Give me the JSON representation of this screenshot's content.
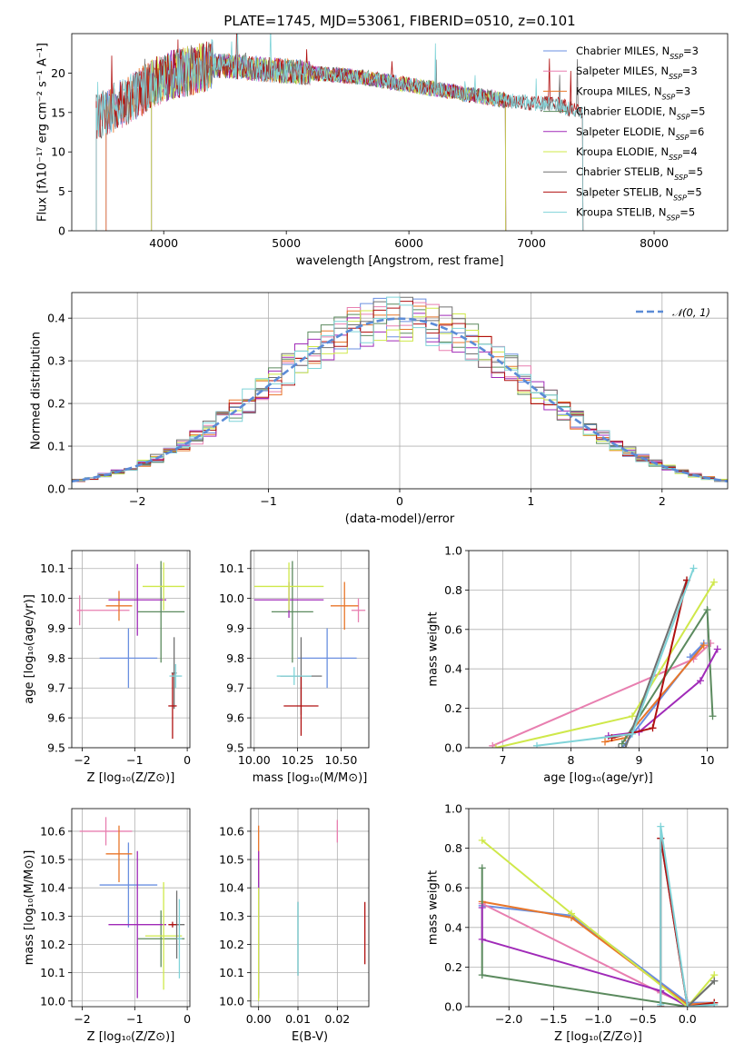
{
  "chart_data": [
    {
      "id": "spectrum",
      "type": "line",
      "title": "PLATE=1745, MJD=53061, FIBERID=0510, z=0.101",
      "xlabel": "wavelength [Angstrom, rest frame]",
      "ylabel": "Flux [fλ10⁻¹⁷ erg cm⁻² s⁻¹ A⁻¹]",
      "xlim": [
        3250,
        8600
      ],
      "ylim": [
        0,
        25
      ],
      "xticks": [
        4000,
        5000,
        6000,
        7000,
        8000
      ],
      "yticks": [
        0,
        5,
        10,
        15,
        20
      ],
      "grid": false,
      "legend_position": "top-right",
      "series": [
        {
          "name": "Chabrier MILES, N_SSP=3",
          "color": "#6a8fe0",
          "x": [
            3530,
            3700,
            3900,
            4100,
            4400,
            4700,
            5000,
            5400,
            5800,
            6200,
            6600,
            6790
          ]
        },
        {
          "name": "Salpeter MILES, N_SSP=3",
          "color": "#e87fb0",
          "x": [
            3530,
            3700,
            3900,
            4100,
            4400,
            4700,
            5000,
            5400,
            5800,
            6200,
            6600,
            6790
          ]
        },
        {
          "name": "Kroupa MILES, N_SSP=3",
          "color": "#e8762a",
          "x": [
            3530,
            3700,
            3900,
            4100,
            4400,
            4700,
            5000,
            5400,
            5800,
            6200,
            6600,
            6790
          ]
        },
        {
          "name": "Chabrier ELODIE, N_SSP=5",
          "color": "#5b8a5e",
          "x": [
            3900,
            4100,
            4400,
            4700,
            5000,
            5400,
            5800,
            6200,
            6600,
            6790
          ]
        },
        {
          "name": "Salpeter ELODIE, N_SSP=6",
          "color": "#a02ab8",
          "x": [
            3900,
            4100,
            4400,
            4700,
            5000,
            5400,
            5800,
            6200,
            6600,
            6790
          ]
        },
        {
          "name": "Kroupa ELODIE, N_SSP=4",
          "color": "#cfe84a",
          "x": [
            3900,
            4100,
            4400,
            4700,
            5000,
            5400,
            5800,
            6200,
            6600,
            6790
          ]
        },
        {
          "name": "Chabrier STELIB, N_SSP=5",
          "color": "#707070",
          "x": [
            3450,
            3700,
            4000,
            4400,
            4800,
            5200,
            5600,
            6000,
            6400,
            6800,
            7200,
            7420
          ]
        },
        {
          "name": "Salpeter STELIB, N_SSP=5",
          "color": "#b01010",
          "x": [
            3450,
            3700,
            4000,
            4400,
            4800,
            5200,
            5600,
            6000,
            6400,
            6800,
            7200,
            7420
          ]
        },
        {
          "name": "Kroupa STELIB, N_SSP=5",
          "color": "#7fd3d8",
          "x": [
            3450,
            3700,
            4000,
            4400,
            4800,
            5200,
            5600,
            6000,
            6400,
            6800,
            7200,
            7420
          ]
        }
      ],
      "continuum_y": [
        14.5,
        16.5,
        19.5,
        21.0,
        20.5,
        20.0,
        19.5,
        18.5,
        17.5,
        16.5,
        16.0,
        15.0
      ]
    },
    {
      "id": "residuals",
      "type": "histogram",
      "xlabel": "(data-model)/error",
      "ylabel": "Normed distribution",
      "xlim": [
        -2.5,
        2.5
      ],
      "ylim": [
        0,
        0.46
      ],
      "xticks": [
        -2,
        -1,
        0,
        1,
        2
      ],
      "yticks": [
        0.0,
        0.1,
        0.2,
        0.3,
        0.4
      ],
      "grid": true,
      "legend_position": "top-right",
      "reference_curve": {
        "name": "𝒩(0, 1)",
        "color": "#5b8bd6",
        "style": "dashed",
        "mean": 0,
        "sigma": 1
      },
      "bin_width": 0.1,
      "series": [
        {
          "color": "#6a8fe0",
          "wiggle": 0.0
        },
        {
          "color": "#e87fb0",
          "wiggle": 0.5
        },
        {
          "color": "#e8762a",
          "wiggle": 1.0
        },
        {
          "color": "#5b8a5e",
          "wiggle": 1.5
        },
        {
          "color": "#a02ab8",
          "wiggle": 2.0
        },
        {
          "color": "#cfe84a",
          "wiggle": 2.5
        },
        {
          "color": "#707070",
          "wiggle": 3.0
        },
        {
          "color": "#b01010",
          "wiggle": 3.5
        },
        {
          "color": "#7fd3d8",
          "wiggle": 4.0
        }
      ]
    },
    {
      "id": "age_vs_z",
      "type": "errorbar",
      "xlabel": "Z [log₁₀(Z/Z⊙)]",
      "ylabel": "age  [log₁₀(age/yr)]",
      "xlim": [
        -2.2,
        0.05
      ],
      "ylim": [
        9.5,
        10.16
      ],
      "xticks": [
        -2,
        -1,
        0
      ],
      "yticks": [
        9.5,
        9.6,
        9.7,
        9.8,
        9.9,
        10.0,
        10.1
      ],
      "grid": true,
      "points": [
        {
          "color": "#6a8fe0",
          "x": -1.12,
          "xerr": 0.55,
          "y": 9.8,
          "yerr": 0.1
        },
        {
          "color": "#e87fb0",
          "x": -2.05,
          "xerr": 0.05,
          "y": 9.96,
          "yerr": 0.05
        },
        {
          "color": "#e87fb0",
          "x": -1.6,
          "xerr": 0.5,
          "y": 9.96,
          "yerr": 0.0
        },
        {
          "color": "#e8762a",
          "x": -1.3,
          "xerr": 0.25,
          "y": 9.975,
          "yerr": 0.05
        },
        {
          "color": "#5b8a5e",
          "x": -0.5,
          "xerr": 0.45,
          "y": 9.955,
          "yerr": 0.17
        },
        {
          "color": "#a02ab8",
          "x": -0.95,
          "xerr": 0.55,
          "y": 9.995,
          "yerr": 0.12
        },
        {
          "color": "#cfe84a",
          "x": -0.45,
          "xerr": 0.4,
          "y": 10.04,
          "yerr": 0.08
        },
        {
          "color": "#707070",
          "x": -0.25,
          "xerr": 0.05,
          "y": 9.75,
          "yerr": 0.12
        },
        {
          "color": "#b01010",
          "x": -0.28,
          "xerr": 0.08,
          "y": 9.64,
          "yerr": 0.11
        },
        {
          "color": "#7fd3d8",
          "x": -0.22,
          "xerr": 0.12,
          "y": 9.74,
          "yerr": 0.04
        }
      ]
    },
    {
      "id": "age_vs_mass",
      "type": "errorbar",
      "xlabel": "mass [log₁₀(M/M⊙)]",
      "ylabel": "",
      "xlim": [
        9.98,
        10.66
      ],
      "ylim": [
        9.5,
        10.16
      ],
      "xticks": [
        10.0,
        10.25,
        10.5
      ],
      "xticklabels": [
        "10.00",
        "10.25",
        "10.50"
      ],
      "yticks": [
        9.5,
        9.6,
        9.7,
        9.8,
        9.9,
        10.0,
        10.1
      ],
      "grid": true,
      "points": [
        {
          "color": "#6a8fe0",
          "x": 10.42,
          "xerr": 0.17,
          "y": 9.8,
          "yerr": 0.1
        },
        {
          "color": "#e87fb0",
          "x": 10.6,
          "xerr": 0.04,
          "y": 9.96,
          "yerr": 0.04
        },
        {
          "color": "#e8762a",
          "x": 10.52,
          "xerr": 0.08,
          "y": 9.975,
          "yerr": 0.08
        },
        {
          "color": "#5b8a5e",
          "x": 10.22,
          "xerr": 0.12,
          "y": 9.955,
          "yerr": 0.17
        },
        {
          "color": "#a02ab8",
          "x": 10.2,
          "xerr": 0.2,
          "y": 9.995,
          "yerr": 0.06
        },
        {
          "color": "#cfe84a",
          "x": 10.2,
          "xerr": 0.2,
          "y": 10.04,
          "yerr": 0.08
        },
        {
          "color": "#707070",
          "x": 10.27,
          "xerr": 0.12,
          "y": 9.74,
          "yerr": 0.13
        },
        {
          "color": "#b01010",
          "x": 10.27,
          "xerr": 0.1,
          "y": 9.64,
          "yerr": 0.1
        },
        {
          "color": "#7fd3d8",
          "x": 10.23,
          "xerr": 0.1,
          "y": 9.74,
          "yerr": 0.03
        }
      ]
    },
    {
      "id": "weight_vs_age",
      "type": "line",
      "xlabel": "age  [log₁₀(age/yr)]",
      "ylabel": "mass weight",
      "xlim": [
        6.5,
        10.3
      ],
      "ylim": [
        0,
        1
      ],
      "xticks": [
        7,
        8,
        9,
        10
      ],
      "yticks": [
        0.0,
        0.2,
        0.4,
        0.6,
        0.8,
        1.0
      ],
      "grid": true,
      "series": [
        {
          "color": "#6a8fe0",
          "x": [
            8.75,
            9.95,
            9.75
          ],
          "y": [
            0.0,
            0.53,
            0.46
          ]
        },
        {
          "color": "#e87fb0",
          "x": [
            6.85,
            9.8,
            10.05
          ],
          "y": [
            0.01,
            0.45,
            0.53
          ]
        },
        {
          "color": "#e8762a",
          "x": [
            8.5,
            8.8,
            9.95
          ],
          "y": [
            0.03,
            0.05,
            0.52
          ]
        },
        {
          "color": "#5b8a5e",
          "x": [
            8.75,
            10.0,
            10.08
          ],
          "y": [
            0.02,
            0.7,
            0.16
          ]
        },
        {
          "color": "#a02ab8",
          "x": [
            8.55,
            9.0,
            9.9,
            10.15
          ],
          "y": [
            0.06,
            0.08,
            0.34,
            0.5
          ]
        },
        {
          "color": "#cfe84a",
          "x": [
            6.9,
            8.9,
            10.1
          ],
          "y": [
            0.0,
            0.16,
            0.84
          ]
        },
        {
          "color": "#707070",
          "x": [
            8.7,
            8.8,
            9.7
          ],
          "y": [
            0.0,
            0.0,
            0.85
          ]
        },
        {
          "color": "#b01010",
          "x": [
            8.6,
            9.2,
            9.7
          ],
          "y": [
            0.05,
            0.1,
            0.85
          ]
        },
        {
          "color": "#7fd3d8",
          "x": [
            7.5,
            8.9,
            9.8
          ],
          "y": [
            0.01,
            0.07,
            0.91
          ]
        }
      ]
    },
    {
      "id": "mass_vs_z",
      "type": "errorbar",
      "xlabel": "Z [log₁₀(Z/Z⊙)]",
      "ylabel": "mass [log₁₀(M/M⊙)]",
      "xlim": [
        -2.2,
        0.05
      ],
      "ylim": [
        9.98,
        10.68
      ],
      "xticks": [
        -2,
        -1,
        0
      ],
      "yticks": [
        10.0,
        10.1,
        10.2,
        10.3,
        10.4,
        10.5,
        10.6
      ],
      "grid": true,
      "points": [
        {
          "color": "#6a8fe0",
          "x": -1.12,
          "xerr": 0.55,
          "y": 10.41,
          "yerr": 0.15
        },
        {
          "color": "#e87fb0",
          "x": -1.55,
          "xerr": 0.5,
          "y": 10.6,
          "yerr": 0.05
        },
        {
          "color": "#e8762a",
          "x": -1.3,
          "xerr": 0.25,
          "y": 10.52,
          "yerr": 0.1
        },
        {
          "color": "#5b8a5e",
          "x": -0.5,
          "xerr": 0.45,
          "y": 10.22,
          "yerr": 0.1
        },
        {
          "color": "#a02ab8",
          "x": -0.95,
          "xerr": 0.55,
          "y": 10.27,
          "yerr": 0.26
        },
        {
          "color": "#cfe84a",
          "x": -0.45,
          "xerr": 0.35,
          "y": 10.23,
          "yerr": 0.19
        },
        {
          "color": "#707070",
          "x": -0.2,
          "xerr": 0.15,
          "y": 10.27,
          "yerr": 0.12
        },
        {
          "color": "#b01010",
          "x": -0.28,
          "xerr": 0.08,
          "y": 10.27,
          "yerr": 0.01
        },
        {
          "color": "#7fd3d8",
          "x": -0.15,
          "xerr": 0.05,
          "y": 10.22,
          "yerr": 0.14
        }
      ]
    },
    {
      "id": "mass_vs_ebv",
      "type": "errorbar",
      "xlabel": "E(B-V)",
      "ylabel": "",
      "xlim": [
        -0.002,
        0.028
      ],
      "ylim": [
        9.98,
        10.68
      ],
      "xticks": [
        0.0,
        0.01,
        0.02
      ],
      "xticklabels": [
        "0.00",
        "0.01",
        "0.02"
      ],
      "yticks": [
        10.0,
        10.1,
        10.2,
        10.3,
        10.4,
        10.5,
        10.6
      ],
      "grid": true,
      "points": [
        {
          "color": "#6a8fe0",
          "x": 0.0,
          "xerr": 0,
          "y": 10.41,
          "yerr": 0.05
        },
        {
          "color": "#e87fb0",
          "x": 0.02,
          "xerr": 0,
          "y": 10.6,
          "yerr": 0.04
        },
        {
          "color": "#e8762a",
          "x": 0.0,
          "xerr": 0,
          "y": 10.52,
          "yerr": 0.1
        },
        {
          "color": "#5b8a5e",
          "x": 0.0,
          "xerr": 0,
          "y": 10.22,
          "yerr": 0.2
        },
        {
          "color": "#a02ab8",
          "x": 0.0,
          "xerr": 0,
          "y": 10.27,
          "yerr": 0.26
        },
        {
          "color": "#cfe84a",
          "x": 0.0,
          "xerr": 0,
          "y": 10.2,
          "yerr": 0.2
        },
        {
          "color": "#707070",
          "x": 0.01,
          "xerr": 0,
          "y": 10.22,
          "yerr": 0.13
        },
        {
          "color": "#b01010",
          "x": 0.027,
          "xerr": 0,
          "y": 10.24,
          "yerr": 0.11
        },
        {
          "color": "#7fd3d8",
          "x": 0.01,
          "xerr": 0,
          "y": 10.22,
          "yerr": 0.13
        }
      ]
    },
    {
      "id": "weight_vs_z",
      "type": "line",
      "xlabel": "Z [log₁₀(Z/Z⊙)]",
      "ylabel": "mass weight",
      "xlim": [
        -2.45,
        0.45
      ],
      "ylim": [
        0,
        1
      ],
      "xticks": [
        -2.0,
        -1.5,
        -1.0,
        -0.5,
        0.0
      ],
      "yticks": [
        0.0,
        0.2,
        0.4,
        0.6,
        0.8,
        1.0
      ],
      "grid": true,
      "series": [
        {
          "color": "#6a8fe0",
          "x": [
            -2.3,
            -1.3,
            0.0,
            0.3
          ],
          "y": [
            0.51,
            0.46,
            0.02,
            0.02
          ]
        },
        {
          "color": "#e87fb0",
          "x": [
            -2.3,
            -0.3,
            0.0,
            0.3
          ],
          "y": [
            0.52,
            0.07,
            0.01,
            0.02
          ]
        },
        {
          "color": "#e8762a",
          "x": [
            -2.3,
            -1.3,
            0.0,
            0.3
          ],
          "y": [
            0.53,
            0.45,
            0.01,
            0.02
          ]
        },
        {
          "color": "#5b8a5e",
          "x": [
            -2.3,
            -2.3,
            0.0,
            0.3
          ],
          "y": [
            0.7,
            0.16,
            0.0,
            0.13
          ]
        },
        {
          "color": "#a02ab8",
          "x": [
            -2.3,
            -2.3,
            -0.3,
            0.0
          ],
          "y": [
            0.5,
            0.34,
            0.08,
            0.0
          ]
        },
        {
          "color": "#cfe84a",
          "x": [
            -2.3,
            -1.3,
            0.0,
            0.3
          ],
          "y": [
            0.84,
            0.47,
            0.0,
            0.16
          ]
        },
        {
          "color": "#707070",
          "x": [
            -0.3,
            -0.3,
            0.0,
            0.3
          ],
          "y": [
            0.0,
            0.85,
            0.0,
            0.13
          ]
        },
        {
          "color": "#b01010",
          "x": [
            -0.3,
            -0.3,
            0.0,
            0.3
          ],
          "y": [
            0.0,
            0.85,
            0.0,
            0.02
          ]
        },
        {
          "color": "#7fd3d8",
          "x": [
            -0.3,
            -0.3,
            0.0,
            0.3
          ],
          "y": [
            0.01,
            0.91,
            0.0,
            0.01
          ]
        }
      ]
    }
  ]
}
